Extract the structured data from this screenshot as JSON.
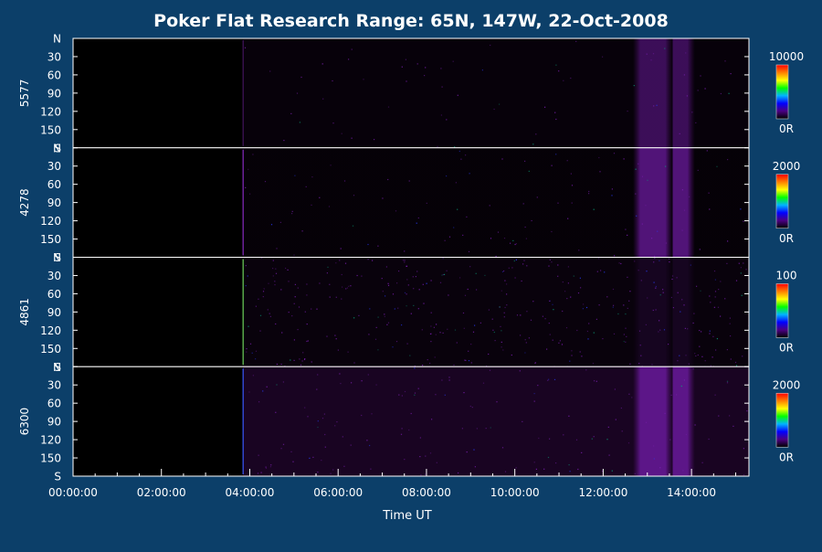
{
  "chart_data": {
    "type": "heatmap",
    "title": "Poker Flat Research Range: 65N, 147W, 22-Oct-2008",
    "xlabel": "Time UT",
    "x_ticks": [
      "00:00:00",
      "02:00:00",
      "04:00:00",
      "06:00:00",
      "08:00:00",
      "10:00:00",
      "12:00:00",
      "14:00:00"
    ],
    "x_tick_hours": [
      0,
      2,
      4,
      6,
      8,
      10,
      12,
      14
    ],
    "xlim_hours": [
      0,
      15.3
    ],
    "y_ticks": [
      "N",
      "30",
      "60",
      "90",
      "120",
      "150",
      "S"
    ],
    "y_tick_values": [
      0,
      30,
      60,
      90,
      120,
      150,
      180
    ],
    "data_start_hour": 3.85,
    "bright_intervals_hours": [
      [
        12.8,
        13.45
      ],
      [
        13.5,
        13.95
      ]
    ],
    "panels": [
      {
        "name": "5577",
        "scale_max": "10000",
        "scale_min": "0R"
      },
      {
        "name": "4278",
        "scale_max": "2000",
        "scale_min": "0R"
      },
      {
        "name": "4861",
        "scale_max": "100",
        "scale_min": "0R"
      },
      {
        "name": "6300",
        "scale_max": "2000",
        "scale_min": "0R"
      }
    ],
    "colormap": [
      "#000000",
      "#4b0082",
      "#0000ff",
      "#00b4ff",
      "#00ff00",
      "#ffff00",
      "#ff8000",
      "#ff0000"
    ]
  }
}
